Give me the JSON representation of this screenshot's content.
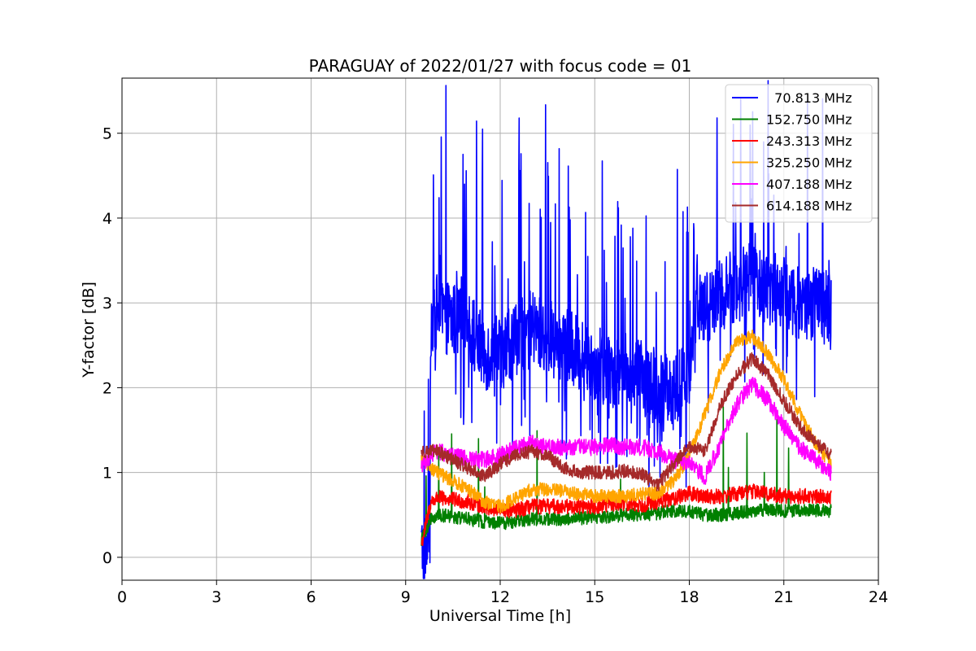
{
  "chart_data": {
    "type": "line",
    "title": "PARAGUAY of 2022/01/27 with focus code = 01",
    "xlabel": "Universal Time [h]",
    "ylabel": "Y-factor [dB]",
    "xlim": [
      0,
      24
    ],
    "ylim": [
      -0.27,
      5.65
    ],
    "xticks": [
      0,
      3,
      6,
      9,
      12,
      15,
      18,
      21,
      24
    ],
    "yticks": [
      0,
      1,
      2,
      3,
      4,
      5
    ],
    "grid": true,
    "legend_position": "top-right",
    "series": [
      {
        "name": "  70.813 MHz",
        "color": "#0000ff",
        "noise": 0.45,
        "x": [
          9.5,
          9.75,
          9.8,
          10.0,
          10.5,
          11.0,
          11.5,
          12.0,
          12.5,
          13.0,
          13.5,
          14.0,
          14.5,
          15.0,
          15.5,
          16.0,
          16.5,
          17.0,
          17.5,
          18.0,
          18.2,
          18.5,
          19.0,
          19.5,
          20.0,
          20.5,
          21.0,
          21.5,
          22.0,
          22.5
        ],
        "y": [
          0.1,
          0.1,
          2.8,
          2.9,
          2.8,
          2.7,
          2.4,
          2.4,
          2.6,
          2.7,
          2.6,
          2.5,
          2.4,
          2.3,
          2.2,
          2.2,
          2.1,
          2.0,
          2.0,
          2.1,
          2.9,
          2.9,
          3.1,
          3.2,
          3.3,
          3.2,
          3.1,
          3.0,
          3.0,
          2.9
        ]
      },
      {
        "name": "152.750 MHz",
        "color": "#008000",
        "noise": 0.08,
        "x": [
          9.5,
          9.8,
          10.0,
          10.5,
          11.0,
          11.5,
          12.0,
          12.5,
          13.0,
          13.5,
          14.0,
          14.5,
          15.0,
          15.5,
          16.0,
          16.5,
          17.0,
          17.5,
          18.0,
          18.5,
          19.0,
          19.5,
          20.0,
          20.5,
          21.0,
          21.5,
          22.0,
          22.5
        ],
        "y": [
          0.2,
          0.45,
          0.5,
          0.48,
          0.45,
          0.42,
          0.4,
          0.42,
          0.45,
          0.45,
          0.45,
          0.46,
          0.47,
          0.48,
          0.5,
          0.5,
          0.52,
          0.55,
          0.55,
          0.5,
          0.5,
          0.52,
          0.55,
          0.56,
          0.55,
          0.56,
          0.55,
          0.55
        ]
      },
      {
        "name": "243.313 MHz",
        "color": "#ff0000",
        "noise": 0.09,
        "x": [
          9.5,
          9.8,
          10.0,
          10.5,
          11.0,
          11.5,
          12.0,
          12.5,
          13.0,
          13.5,
          14.0,
          14.5,
          15.0,
          15.5,
          16.0,
          16.5,
          17.0,
          17.5,
          18.0,
          18.5,
          19.0,
          19.5,
          20.0,
          20.5,
          21.0,
          21.5,
          22.0,
          22.5
        ],
        "y": [
          0.15,
          0.65,
          0.7,
          0.68,
          0.65,
          0.6,
          0.55,
          0.55,
          0.6,
          0.6,
          0.6,
          0.6,
          0.6,
          0.62,
          0.63,
          0.62,
          0.65,
          0.7,
          0.75,
          0.72,
          0.72,
          0.75,
          0.78,
          0.75,
          0.72,
          0.72,
          0.72,
          0.72
        ]
      },
      {
        "name": "325.250 MHz",
        "color": "#ffa500",
        "noise": 0.08,
        "x": [
          9.5,
          10.0,
          10.5,
          11.0,
          11.5,
          12.0,
          12.5,
          13.0,
          13.5,
          14.0,
          14.5,
          15.0,
          15.5,
          16.0,
          16.5,
          17.0,
          17.5,
          18.0,
          18.5,
          19.0,
          19.5,
          20.0,
          20.5,
          21.0,
          21.5,
          22.0,
          22.5
        ],
        "y": [
          1.15,
          1.0,
          0.9,
          0.8,
          0.65,
          0.6,
          0.7,
          0.8,
          0.8,
          0.78,
          0.75,
          0.72,
          0.72,
          0.72,
          0.75,
          0.75,
          0.9,
          1.2,
          1.7,
          2.2,
          2.55,
          2.6,
          2.4,
          2.1,
          1.7,
          1.35,
          1.1
        ]
      },
      {
        "name": "407.188 MHz",
        "color": "#ff00ff",
        "noise": 0.1,
        "x": [
          9.5,
          10.0,
          10.5,
          11.0,
          11.5,
          12.0,
          12.5,
          13.0,
          13.5,
          14.0,
          14.5,
          15.0,
          15.5,
          16.0,
          16.5,
          17.0,
          17.5,
          18.0,
          18.5,
          19.0,
          19.5,
          20.0,
          20.5,
          21.0,
          21.5,
          22.0,
          22.5
        ],
        "y": [
          1.1,
          1.25,
          1.2,
          1.15,
          1.15,
          1.2,
          1.3,
          1.35,
          1.3,
          1.3,
          1.3,
          1.3,
          1.32,
          1.3,
          1.3,
          1.25,
          1.15,
          1.1,
          0.95,
          1.35,
          1.8,
          2.05,
          1.85,
          1.55,
          1.3,
          1.15,
          1.0
        ]
      },
      {
        "name": "614.188 MHz",
        "color": "#a52a2a",
        "noise": 0.08,
        "x": [
          9.5,
          10.0,
          10.5,
          11.0,
          11.5,
          12.0,
          12.5,
          13.0,
          13.5,
          14.0,
          14.5,
          15.0,
          15.5,
          16.0,
          16.5,
          17.0,
          17.5,
          18.0,
          18.5,
          19.0,
          19.5,
          20.0,
          20.5,
          21.0,
          21.5,
          22.0,
          22.5
        ],
        "y": [
          1.25,
          1.25,
          1.15,
          1.05,
          0.95,
          1.1,
          1.2,
          1.25,
          1.2,
          1.05,
          1.0,
          1.0,
          1.0,
          1.02,
          0.98,
          0.85,
          1.1,
          1.3,
          1.25,
          1.8,
          2.15,
          2.35,
          2.15,
          1.85,
          1.55,
          1.35,
          1.2
        ]
      }
    ]
  }
}
